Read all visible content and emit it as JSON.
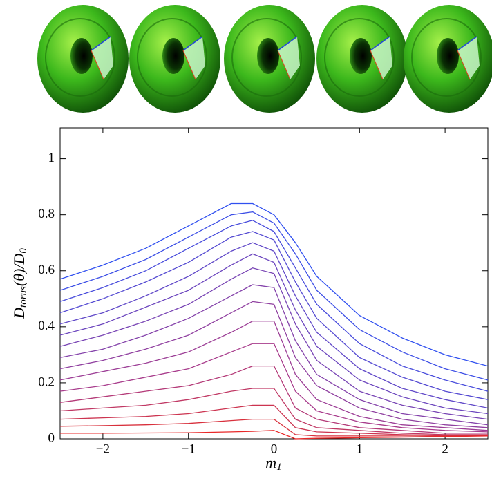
{
  "chart_data": {
    "type": "line",
    "xlabel": [
      "m",
      "1"
    ],
    "ylabel": [
      "D",
      "torus",
      "(θ)/D",
      "0"
    ],
    "x": [
      -2.5,
      -2,
      -1.5,
      -1,
      -0.5,
      -0.25,
      0,
      0.25,
      0.5,
      1,
      1.5,
      2,
      2.5
    ],
    "series": [
      {
        "color": "#3050f0",
        "values": [
          0.57,
          0.62,
          0.68,
          0.76,
          0.84,
          0.84,
          0.8,
          0.7,
          0.58,
          0.44,
          0.36,
          0.3,
          0.26
        ]
      },
      {
        "color": "#3c4ee6",
        "values": [
          0.53,
          0.58,
          0.64,
          0.72,
          0.8,
          0.81,
          0.77,
          0.66,
          0.53,
          0.39,
          0.31,
          0.25,
          0.21
        ]
      },
      {
        "color": "#484cdc",
        "values": [
          0.49,
          0.54,
          0.6,
          0.68,
          0.76,
          0.78,
          0.74,
          0.61,
          0.48,
          0.34,
          0.26,
          0.21,
          0.17
        ]
      },
      {
        "color": "#544ad2",
        "values": [
          0.45,
          0.5,
          0.56,
          0.63,
          0.72,
          0.74,
          0.71,
          0.56,
          0.43,
          0.29,
          0.22,
          0.17,
          0.14
        ]
      },
      {
        "color": "#6048c8",
        "values": [
          0.41,
          0.45,
          0.51,
          0.58,
          0.67,
          0.7,
          0.67,
          0.51,
          0.38,
          0.25,
          0.18,
          0.14,
          0.11
        ]
      },
      {
        "color": "#6c46be",
        "values": [
          0.37,
          0.41,
          0.47,
          0.53,
          0.62,
          0.66,
          0.63,
          0.46,
          0.33,
          0.21,
          0.15,
          0.11,
          0.09
        ]
      },
      {
        "color": "#7844b4",
        "values": [
          0.33,
          0.37,
          0.42,
          0.48,
          0.57,
          0.61,
          0.59,
          0.41,
          0.28,
          0.17,
          0.12,
          0.09,
          0.07
        ]
      },
      {
        "color": "#8442aa",
        "values": [
          0.29,
          0.32,
          0.37,
          0.43,
          0.51,
          0.55,
          0.54,
          0.35,
          0.23,
          0.14,
          0.09,
          0.07,
          0.05
        ]
      },
      {
        "color": "#9040a0",
        "values": [
          0.25,
          0.28,
          0.32,
          0.37,
          0.45,
          0.49,
          0.48,
          0.29,
          0.19,
          0.11,
          0.07,
          0.05,
          0.04
        ]
      },
      {
        "color": "#9c3e96",
        "values": [
          0.21,
          0.24,
          0.27,
          0.31,
          0.38,
          0.42,
          0.42,
          0.23,
          0.14,
          0.08,
          0.05,
          0.04,
          0.03
        ]
      },
      {
        "color": "#a83c8c",
        "values": [
          0.17,
          0.19,
          0.22,
          0.25,
          0.31,
          0.34,
          0.34,
          0.17,
          0.1,
          0.06,
          0.04,
          0.03,
          0.025
        ]
      },
      {
        "color": "#b43a78",
        "values": [
          0.13,
          0.15,
          0.17,
          0.19,
          0.23,
          0.26,
          0.26,
          0.11,
          0.07,
          0.04,
          0.03,
          0.02,
          0.02
        ]
      },
      {
        "color": "#c03864",
        "values": [
          0.1,
          0.11,
          0.12,
          0.14,
          0.17,
          0.18,
          0.18,
          0.07,
          0.04,
          0.03,
          0.02,
          0.015,
          0.015
        ]
      },
      {
        "color": "#cc3450",
        "values": [
          0.07,
          0.075,
          0.08,
          0.09,
          0.11,
          0.12,
          0.12,
          0.04,
          0.025,
          0.02,
          0.015,
          0.012,
          0.012
        ]
      },
      {
        "color": "#d8303c",
        "values": [
          0.045,
          0.047,
          0.05,
          0.055,
          0.065,
          0.07,
          0.07,
          0.015,
          0.01,
          0.01,
          0.01,
          0.01,
          0.01
        ]
      },
      {
        "color": "#e82828",
        "values": [
          0.02,
          0.02,
          0.021,
          0.022,
          0.025,
          0.027,
          0.03,
          0,
          0.002,
          0.004,
          0.006,
          0.008,
          0.01
        ]
      }
    ],
    "xlim": [
      -2.5,
      2.5
    ],
    "ylim": [
      0,
      1.11
    ],
    "xticks": [
      {
        "value": -2,
        "label": "−2"
      },
      {
        "value": -1,
        "label": "−1"
      },
      0,
      1,
      2
    ],
    "yticks": [
      0,
      0.2,
      0.4,
      0.6,
      0.8,
      1
    ],
    "grid": false
  }
}
